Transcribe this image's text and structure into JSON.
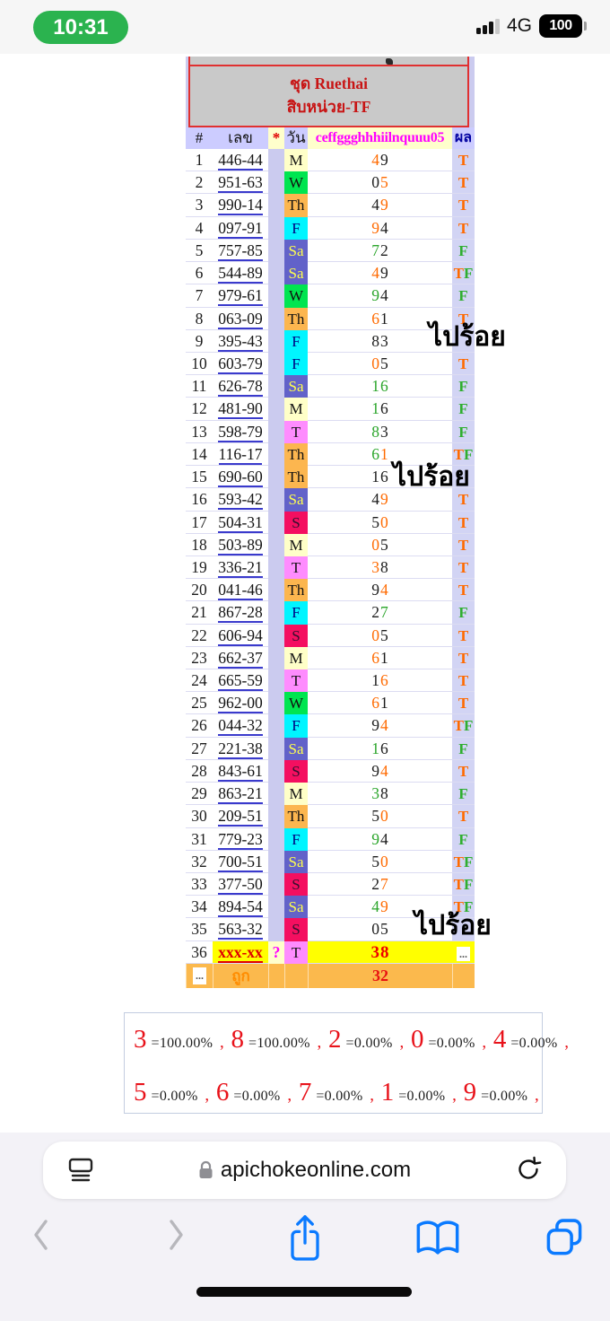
{
  "status_bar": {
    "time": "10:31",
    "network": "4G",
    "battery": "100"
  },
  "table": {
    "title_line1": "ชุด Ruethai",
    "title_line2": "สิบหน่วย-TF",
    "headers": {
      "num": "#",
      "number": "เลข",
      "star": "*",
      "day": "วัน",
      "label": "ceffggghhhiilnquuu05",
      "result": "ผล"
    },
    "day_colors": {
      "M": {
        "bg": "#ffffc8",
        "fg": "#111111"
      },
      "T": {
        "bg": "#fe8cfe",
        "fg": "#111111"
      },
      "W": {
        "bg": "#00e550",
        "fg": "#111111"
      },
      "Th": {
        "bg": "#fcb64f",
        "fg": "#111111"
      },
      "F": {
        "bg": "#00f5ff",
        "fg": "#000080"
      },
      "Sa": {
        "bg": "#6262c9",
        "fg": "#ffff4d"
      },
      "S": {
        "bg": "#f40f60",
        "fg": "#32102e"
      }
    },
    "result_colors": {
      "T": "#ff6a00",
      "F": "#2fae2f"
    },
    "digit_colors": {
      "o": "#ff6a00",
      "k": "#1c1c1c",
      "g": "#2aa52a",
      "r": "#ee0000"
    },
    "rows": [
      {
        "n": "1",
        "num": "446-44",
        "day": "M",
        "digits": [
          [
            "4",
            "o"
          ],
          [
            "9",
            "k"
          ]
        ],
        "result": "T"
      },
      {
        "n": "2",
        "num": "951-63",
        "day": "W",
        "digits": [
          [
            "0",
            "k"
          ],
          [
            "5",
            "o"
          ]
        ],
        "result": "T"
      },
      {
        "n": "3",
        "num": "990-14",
        "day": "Th",
        "digits": [
          [
            "4",
            "k"
          ],
          [
            "9",
            "o"
          ]
        ],
        "result": "T"
      },
      {
        "n": "4",
        "num": "097-91",
        "day": "F",
        "digits": [
          [
            "9",
            "o"
          ],
          [
            "4",
            "k"
          ]
        ],
        "result": "T"
      },
      {
        "n": "5",
        "num": "757-85",
        "day": "Sa",
        "digits": [
          [
            "7",
            "g"
          ],
          [
            "2",
            "k"
          ]
        ],
        "result": "F"
      },
      {
        "n": "6",
        "num": "544-89",
        "day": "Sa",
        "digits": [
          [
            "4",
            "o"
          ],
          [
            "9",
            "k"
          ]
        ],
        "result": "TF"
      },
      {
        "n": "7",
        "num": "979-61",
        "day": "W",
        "digits": [
          [
            "9",
            "g"
          ],
          [
            "4",
            "k"
          ]
        ],
        "result": "F"
      },
      {
        "n": "8",
        "num": "063-09",
        "day": "Th",
        "digits": [
          [
            "6",
            "o"
          ],
          [
            "1",
            "k"
          ]
        ],
        "result": "T"
      },
      {
        "n": "9",
        "num": "395-43",
        "day": "F",
        "digits": [
          [
            "8",
            "k"
          ],
          [
            "3",
            "k"
          ]
        ],
        "result": ""
      },
      {
        "n": "10",
        "num": "603-79",
        "day": "F",
        "digits": [
          [
            "0",
            "o"
          ],
          [
            "5",
            "k"
          ]
        ],
        "result": "T"
      },
      {
        "n": "11",
        "num": "626-78",
        "day": "Sa",
        "digits": [
          [
            "1",
            "g"
          ],
          [
            "6",
            "g"
          ]
        ],
        "result": "F"
      },
      {
        "n": "12",
        "num": "481-90",
        "day": "M",
        "digits": [
          [
            "1",
            "g"
          ],
          [
            "6",
            "k"
          ]
        ],
        "result": "F"
      },
      {
        "n": "13",
        "num": "598-79",
        "day": "T",
        "digits": [
          [
            "8",
            "g"
          ],
          [
            "3",
            "k"
          ]
        ],
        "result": "F"
      },
      {
        "n": "14",
        "num": "116-17",
        "day": "Th",
        "digits": [
          [
            "6",
            "g"
          ],
          [
            "1",
            "o"
          ]
        ],
        "result": "TF"
      },
      {
        "n": "15",
        "num": "690-60",
        "day": "Th",
        "digits": [
          [
            "1",
            "k"
          ],
          [
            "6",
            "k"
          ]
        ],
        "result": ""
      },
      {
        "n": "16",
        "num": "593-42",
        "day": "Sa",
        "digits": [
          [
            "4",
            "k"
          ],
          [
            "9",
            "o"
          ]
        ],
        "result": "T"
      },
      {
        "n": "17",
        "num": "504-31",
        "day": "S",
        "digits": [
          [
            "5",
            "k"
          ],
          [
            "0",
            "o"
          ]
        ],
        "result": "T"
      },
      {
        "n": "18",
        "num": "503-89",
        "day": "M",
        "digits": [
          [
            "0",
            "o"
          ],
          [
            "5",
            "k"
          ]
        ],
        "result": "T"
      },
      {
        "n": "19",
        "num": "336-21",
        "day": "T",
        "digits": [
          [
            "3",
            "o"
          ],
          [
            "8",
            "k"
          ]
        ],
        "result": "T"
      },
      {
        "n": "20",
        "num": "041-46",
        "day": "Th",
        "digits": [
          [
            "9",
            "k"
          ],
          [
            "4",
            "o"
          ]
        ],
        "result": "T"
      },
      {
        "n": "21",
        "num": "867-28",
        "day": "F",
        "digits": [
          [
            "2",
            "k"
          ],
          [
            "7",
            "g"
          ]
        ],
        "result": "F"
      },
      {
        "n": "22",
        "num": "606-94",
        "day": "S",
        "digits": [
          [
            "0",
            "o"
          ],
          [
            "5",
            "k"
          ]
        ],
        "result": "T"
      },
      {
        "n": "23",
        "num": "662-37",
        "day": "M",
        "digits": [
          [
            "6",
            "o"
          ],
          [
            "1",
            "k"
          ]
        ],
        "result": "T"
      },
      {
        "n": "24",
        "num": "665-59",
        "day": "T",
        "digits": [
          [
            "1",
            "k"
          ],
          [
            "6",
            "o"
          ]
        ],
        "result": "T"
      },
      {
        "n": "25",
        "num": "962-00",
        "day": "W",
        "digits": [
          [
            "6",
            "o"
          ],
          [
            "1",
            "k"
          ]
        ],
        "result": "T"
      },
      {
        "n": "26",
        "num": "044-32",
        "day": "F",
        "digits": [
          [
            "9",
            "k"
          ],
          [
            "4",
            "o"
          ]
        ],
        "result": "TF"
      },
      {
        "n": "27",
        "num": "221-38",
        "day": "Sa",
        "digits": [
          [
            "1",
            "g"
          ],
          [
            "6",
            "k"
          ]
        ],
        "result": "F"
      },
      {
        "n": "28",
        "num": "843-61",
        "day": "S",
        "digits": [
          [
            "9",
            "k"
          ],
          [
            "4",
            "o"
          ]
        ],
        "result": "T"
      },
      {
        "n": "29",
        "num": "863-21",
        "day": "M",
        "digits": [
          [
            "3",
            "g"
          ],
          [
            "8",
            "k"
          ]
        ],
        "result": "F"
      },
      {
        "n": "30",
        "num": "209-51",
        "day": "Th",
        "digits": [
          [
            "5",
            "k"
          ],
          [
            "0",
            "o"
          ]
        ],
        "result": "T"
      },
      {
        "n": "31",
        "num": "779-23",
        "day": "F",
        "digits": [
          [
            "9",
            "g"
          ],
          [
            "4",
            "k"
          ]
        ],
        "result": "F"
      },
      {
        "n": "32",
        "num": "700-51",
        "day": "Sa",
        "digits": [
          [
            "5",
            "k"
          ],
          [
            "0",
            "o"
          ]
        ],
        "result": "TF"
      },
      {
        "n": "33",
        "num": "377-50",
        "day": "S",
        "digits": [
          [
            "2",
            "k"
          ],
          [
            "7",
            "o"
          ]
        ],
        "result": "TF"
      },
      {
        "n": "34",
        "num": "894-54",
        "day": "Sa",
        "digits": [
          [
            "4",
            "g"
          ],
          [
            "9",
            "o"
          ]
        ],
        "result": "TF"
      },
      {
        "n": "35",
        "num": "563-32",
        "day": "S",
        "digits": [
          [
            "0",
            "k"
          ],
          [
            "5",
            "k"
          ]
        ],
        "result": ""
      },
      {
        "n": "36",
        "num": "xxx-xx",
        "star": "?",
        "day": "T",
        "digits": [
          [
            "3",
            "r"
          ],
          [
            "8",
            "r"
          ]
        ],
        "result": "...",
        "special": true
      }
    ],
    "footer": {
      "dots": "...",
      "label": "ถูก",
      "value": "32"
    }
  },
  "overlays": [
    "ไปร้อย",
    "ไปร้อย",
    "ไปร้อย"
  ],
  "stats": {
    "lines": [
      [
        [
          "3",
          "100.00%"
        ],
        [
          "8",
          "100.00%"
        ],
        [
          "2",
          "0.00%"
        ],
        [
          "0",
          "0.00%"
        ],
        [
          "4",
          "0.00%"
        ]
      ],
      [
        [
          "5",
          "0.00%"
        ],
        [
          "6",
          "0.00%"
        ],
        [
          "7",
          "0.00%"
        ],
        [
          "1",
          "0.00%"
        ],
        [
          "9",
          "0.00%"
        ]
      ]
    ]
  },
  "browser": {
    "url": "apichokeonline.com"
  }
}
